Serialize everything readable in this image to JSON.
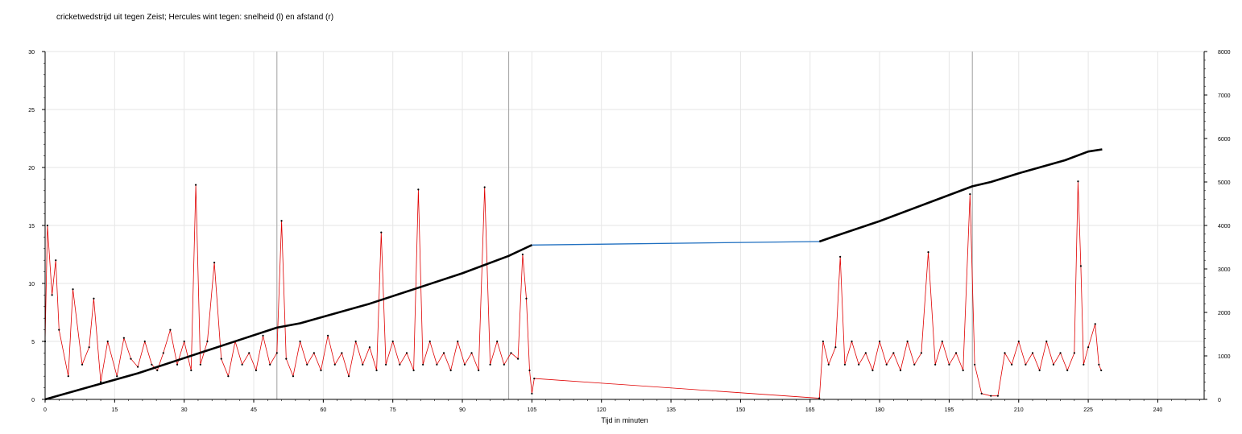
{
  "chart_data": {
    "type": "line",
    "title": "cricketwedstrijd uit tegen Zeist; Hercules wint tegen: snelheid (l) en afstand (r)",
    "xlabel": "Tijd in minuten",
    "ylabel": "",
    "ylabel_right": "",
    "xlim": [
      0,
      250
    ],
    "ylim": [
      0,
      30
    ],
    "ylim_right": [
      0,
      8000
    ],
    "x_ticks": [
      0,
      15,
      30,
      45,
      60,
      75,
      90,
      105,
      120,
      135,
      150,
      165,
      180,
      195,
      210,
      225,
      240
    ],
    "y_ticks": [
      0,
      5,
      10,
      15,
      20,
      25,
      30
    ],
    "y_ticks_right": [
      0,
      1000,
      2000,
      3000,
      4000,
      5000,
      6000,
      7000,
      8000
    ],
    "grid": true,
    "vertical_markers": [
      50,
      100,
      200
    ],
    "legend": "none",
    "colors": {
      "speed": "#e00000",
      "distance": "#000000",
      "gap": "#1f6fc0",
      "grid": "#e6e6e6",
      "marker": "#a0a0a0"
    },
    "series": [
      {
        "axis": "left",
        "points": [
          [
            0,
            5.0
          ],
          [
            0.5,
            15.0
          ],
          [
            1.5,
            9.0
          ],
          [
            2.3,
            12.0
          ],
          [
            3.0,
            6.0
          ],
          [
            5.0,
            2.0
          ],
          [
            6.0,
            9.5
          ],
          [
            8.0,
            3.0
          ],
          [
            9.5,
            4.5
          ],
          [
            10.5,
            8.7
          ],
          [
            12.0,
            1.5
          ],
          [
            13.5,
            5.0
          ],
          [
            15.5,
            2.0
          ],
          [
            17.0,
            5.3
          ],
          [
            18.5,
            3.5
          ],
          [
            20.0,
            2.8
          ],
          [
            21.5,
            5.0
          ],
          [
            23.0,
            3.0
          ],
          [
            24.2,
            2.5
          ],
          [
            25.5,
            4.0
          ],
          [
            27.0,
            6.0
          ],
          [
            28.5,
            3.0
          ],
          [
            30.0,
            5.0
          ],
          [
            31.5,
            2.5
          ],
          [
            32.5,
            18.5
          ],
          [
            33.5,
            3.0
          ],
          [
            35.0,
            5.0
          ],
          [
            36.5,
            11.8
          ],
          [
            38.0,
            3.5
          ],
          [
            39.5,
            2.0
          ],
          [
            41.0,
            5.0
          ],
          [
            42.5,
            3.0
          ],
          [
            44.0,
            4.0
          ],
          [
            45.5,
            2.5
          ],
          [
            47.0,
            5.5
          ],
          [
            48.5,
            3.0
          ],
          [
            50.0,
            4.0
          ],
          [
            51.0,
            15.4
          ],
          [
            52.0,
            3.5
          ],
          [
            53.5,
            2.0
          ],
          [
            55.0,
            5.0
          ],
          [
            56.5,
            3.0
          ],
          [
            58.0,
            4.0
          ],
          [
            59.5,
            2.5
          ],
          [
            61.0,
            5.5
          ],
          [
            62.5,
            3.0
          ],
          [
            64.0,
            4.0
          ],
          [
            65.5,
            2.0
          ],
          [
            67.0,
            5.0
          ],
          [
            68.5,
            3.0
          ],
          [
            70.0,
            4.5
          ],
          [
            71.5,
            2.5
          ],
          [
            72.5,
            14.4
          ],
          [
            73.5,
            3.0
          ],
          [
            75.0,
            5.0
          ],
          [
            76.5,
            3.0
          ],
          [
            78.0,
            4.0
          ],
          [
            79.5,
            2.5
          ],
          [
            80.5,
            18.1
          ],
          [
            81.5,
            3.0
          ],
          [
            83.0,
            5.0
          ],
          [
            84.5,
            3.0
          ],
          [
            86.0,
            4.0
          ],
          [
            87.5,
            2.5
          ],
          [
            89.0,
            5.0
          ],
          [
            90.5,
            3.0
          ],
          [
            92.0,
            4.0
          ],
          [
            93.5,
            2.5
          ],
          [
            94.8,
            18.3
          ],
          [
            96.0,
            3.0
          ],
          [
            97.5,
            5.0
          ],
          [
            99.0,
            3.0
          ],
          [
            100.5,
            4.0
          ],
          [
            102.0,
            3.5
          ],
          [
            103.0,
            12.5
          ],
          [
            103.8,
            8.7
          ],
          [
            104.5,
            2.5
          ],
          [
            105.0,
            0.5
          ],
          [
            105.5,
            1.8
          ],
          [
            167.0,
            0.1
          ],
          [
            167.8,
            5.0
          ],
          [
            169.0,
            3.0
          ],
          [
            170.5,
            4.5
          ],
          [
            171.5,
            12.3
          ],
          [
            172.5,
            3.0
          ],
          [
            174.0,
            5.0
          ],
          [
            175.5,
            3.0
          ],
          [
            177.0,
            4.0
          ],
          [
            178.5,
            2.5
          ],
          [
            180.0,
            5.0
          ],
          [
            181.5,
            3.0
          ],
          [
            183.0,
            4.0
          ],
          [
            184.5,
            2.5
          ],
          [
            186.0,
            5.0
          ],
          [
            187.5,
            3.0
          ],
          [
            189.0,
            4.0
          ],
          [
            190.5,
            12.7
          ],
          [
            192.0,
            3.0
          ],
          [
            193.5,
            5.0
          ],
          [
            195.0,
            3.0
          ],
          [
            196.5,
            4.0
          ],
          [
            198.0,
            2.5
          ],
          [
            199.5,
            17.7
          ],
          [
            200.5,
            3.0
          ],
          [
            202.0,
            0.5
          ],
          [
            204.0,
            0.3
          ],
          [
            205.5,
            0.3
          ],
          [
            207.0,
            4.0
          ],
          [
            208.5,
            3.0
          ],
          [
            210.0,
            5.0
          ],
          [
            211.5,
            3.0
          ],
          [
            213.0,
            4.0
          ],
          [
            214.5,
            2.5
          ],
          [
            216.0,
            5.0
          ],
          [
            217.5,
            3.0
          ],
          [
            219.0,
            4.0
          ],
          [
            220.5,
            2.5
          ],
          [
            222.0,
            4.0
          ],
          [
            222.8,
            18.8
          ],
          [
            223.4,
            11.5
          ],
          [
            224.0,
            3.0
          ],
          [
            225.0,
            4.5
          ],
          [
            226.5,
            6.5
          ],
          [
            227.3,
            3.0
          ],
          [
            227.8,
            2.5
          ]
        ]
      },
      {
        "axis": "right",
        "points": [
          [
            0,
            0
          ],
          [
            10,
            300
          ],
          [
            20,
            600
          ],
          [
            30,
            950
          ],
          [
            40,
            1300
          ],
          [
            50,
            1650
          ],
          [
            55,
            1750
          ],
          [
            60,
            1900
          ],
          [
            70,
            2200
          ],
          [
            80,
            2550
          ],
          [
            90,
            2900
          ],
          [
            100,
            3300
          ],
          [
            104,
            3500
          ],
          [
            105,
            3550
          ],
          [
            167,
            3630
          ],
          [
            170,
            3740
          ],
          [
            180,
            4100
          ],
          [
            190,
            4500
          ],
          [
            200,
            4900
          ],
          [
            204,
            5000
          ],
          [
            210,
            5200
          ],
          [
            220,
            5500
          ],
          [
            225,
            5700
          ],
          [
            228,
            5750
          ]
        ]
      }
    ]
  }
}
